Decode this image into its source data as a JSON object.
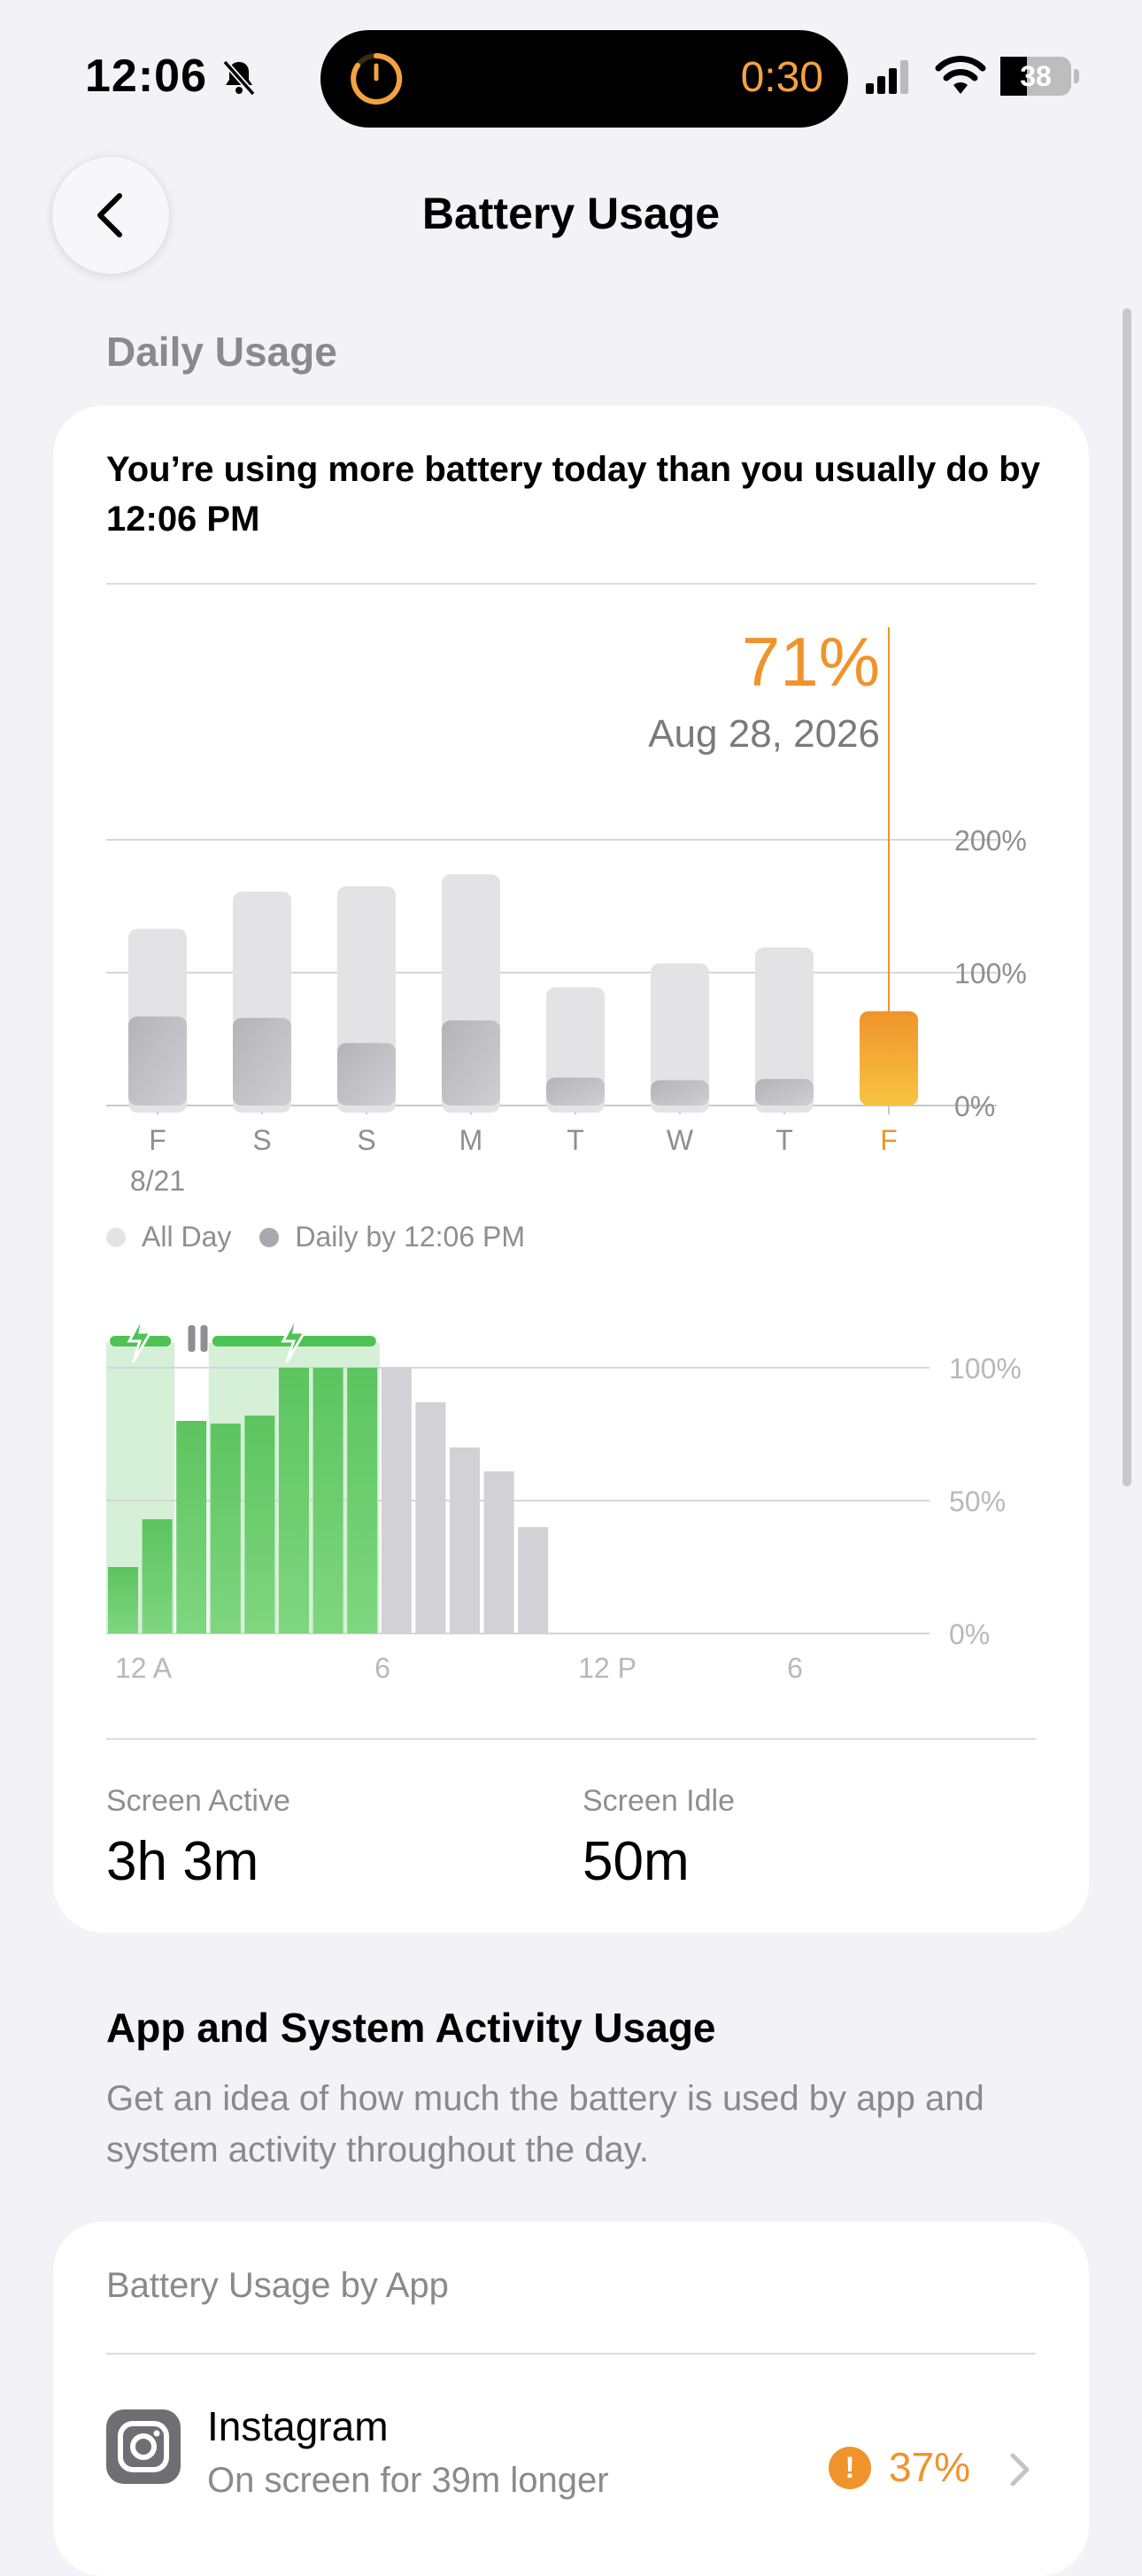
{
  "status_bar": {
    "time": "12:06",
    "island_timer": "0:30",
    "battery_level": "38",
    "battery_fraction": 0.38,
    "icons": [
      "bell-slash-icon",
      "timer-icon",
      "signal-icon",
      "wifi-icon",
      "battery-icon"
    ]
  },
  "nav": {
    "title": "Battery Usage",
    "back_icon": "chevron-left-icon"
  },
  "daily_usage": {
    "section_title": "Daily Usage",
    "message": "You’re using more battery today than you usually do by 12:06 PM",
    "selected_value": "71%",
    "selected_date": "Aug 28, 2026",
    "legend": [
      {
        "label": "All Day",
        "color": "#e3e3e6"
      },
      {
        "label": "Daily by 12:06 PM",
        "color": "#a8a8ad"
      }
    ],
    "accent_color": "#f0932b"
  },
  "chart_data": [
    {
      "type": "bar",
      "categories": [
        "F",
        "S",
        "S",
        "M",
        "T",
        "W",
        "T",
        "F"
      ],
      "sub_labels": [
        "8/21",
        "",
        "",
        "",
        "",
        "",
        "",
        ""
      ],
      "series": [
        {
          "name": "All Day",
          "values": [
            133,
            161,
            165,
            174,
            89,
            107,
            119,
            null
          ]
        },
        {
          "name": "Daily by 12:06 PM",
          "values": [
            67,
            66,
            47,
            64,
            21,
            19,
            20,
            71
          ]
        }
      ],
      "y_ticks": [
        "0%",
        "100%",
        "200%"
      ],
      "ylim": [
        0,
        200
      ],
      "highlighted_index": 7,
      "grid": true
    },
    {
      "type": "bar",
      "x_ticks": [
        "12 A",
        "6",
        "12 P",
        "6"
      ],
      "y_ticks": [
        "0%",
        "50%",
        "100%"
      ],
      "ylim": [
        0,
        100
      ],
      "values": [
        25,
        43,
        80,
        79,
        82,
        100,
        100,
        100,
        100,
        87,
        70,
        61,
        40
      ],
      "charged_count": 8,
      "charging_ranges": [
        [
          0,
          2
        ],
        [
          3,
          8
        ]
      ],
      "paused_at": 2.5,
      "grid": true
    }
  ],
  "screen": {
    "active_label": "Screen Active",
    "active_value": "3h 3m",
    "idle_label": "Screen Idle",
    "idle_value": "50m"
  },
  "activity": {
    "title": "App and System Activity Usage",
    "description": "Get an idea of how much the battery is used by app and system activity throughout the day."
  },
  "by_app": {
    "header": "Battery Usage by App",
    "items": [
      {
        "name": "Instagram",
        "subtitle": "On screen for 39m longer",
        "percent": "37%",
        "icon": "instagram-icon",
        "warning": "!"
      }
    ]
  }
}
